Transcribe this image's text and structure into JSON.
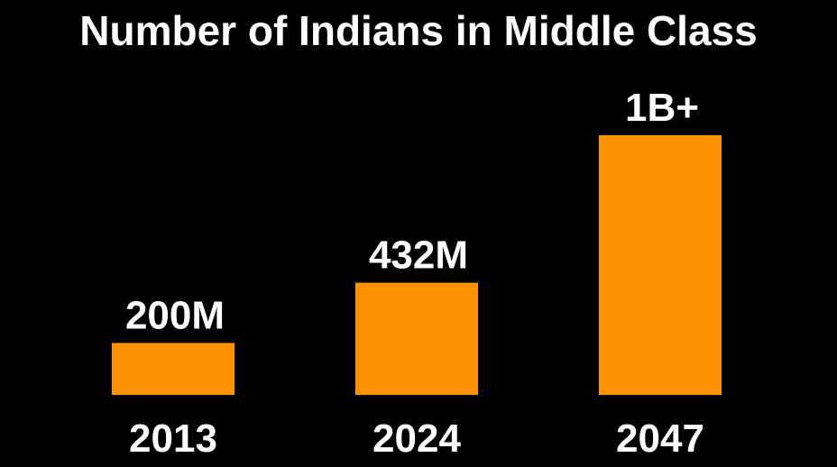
{
  "chart_data": {
    "type": "bar",
    "title": "Number of Indians in Middle Class",
    "categories": [
      "2013",
      "2024",
      "2047"
    ],
    "values": [
      200,
      432,
      1000
    ],
    "data_labels": [
      "200M",
      "432M",
      "1B+"
    ],
    "unit": "million",
    "xlabel": "",
    "ylabel": "",
    "ylim": [
      0,
      1000
    ],
    "grid": false,
    "legend": "none",
    "bar_color": "#FF9200",
    "background_color": "#000000",
    "text_color": "#FFFFFF"
  }
}
